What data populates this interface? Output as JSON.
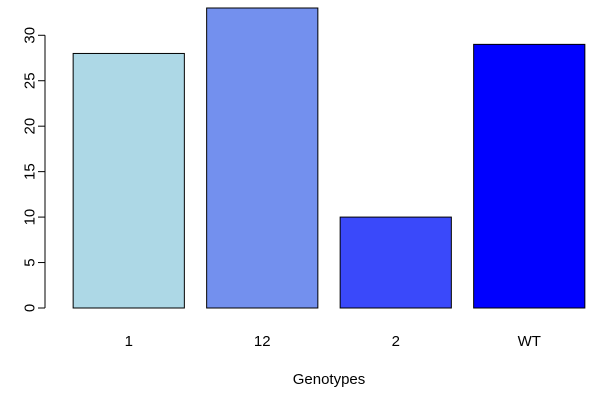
{
  "chart_data": {
    "type": "bar",
    "categories": [
      "1",
      "12",
      "2",
      "WT"
    ],
    "values": [
      28,
      33,
      10,
      29
    ],
    "colors": [
      "#add8e6",
      "#7390ee",
      "#3a49fa",
      "#0000ff"
    ],
    "title": "",
    "xlabel": "Genotypes",
    "ylabel": "",
    "ylim": [
      0,
      33
    ],
    "yticks": [
      0,
      5,
      10,
      15,
      20,
      25,
      30
    ],
    "grid": false,
    "legend": "none"
  }
}
